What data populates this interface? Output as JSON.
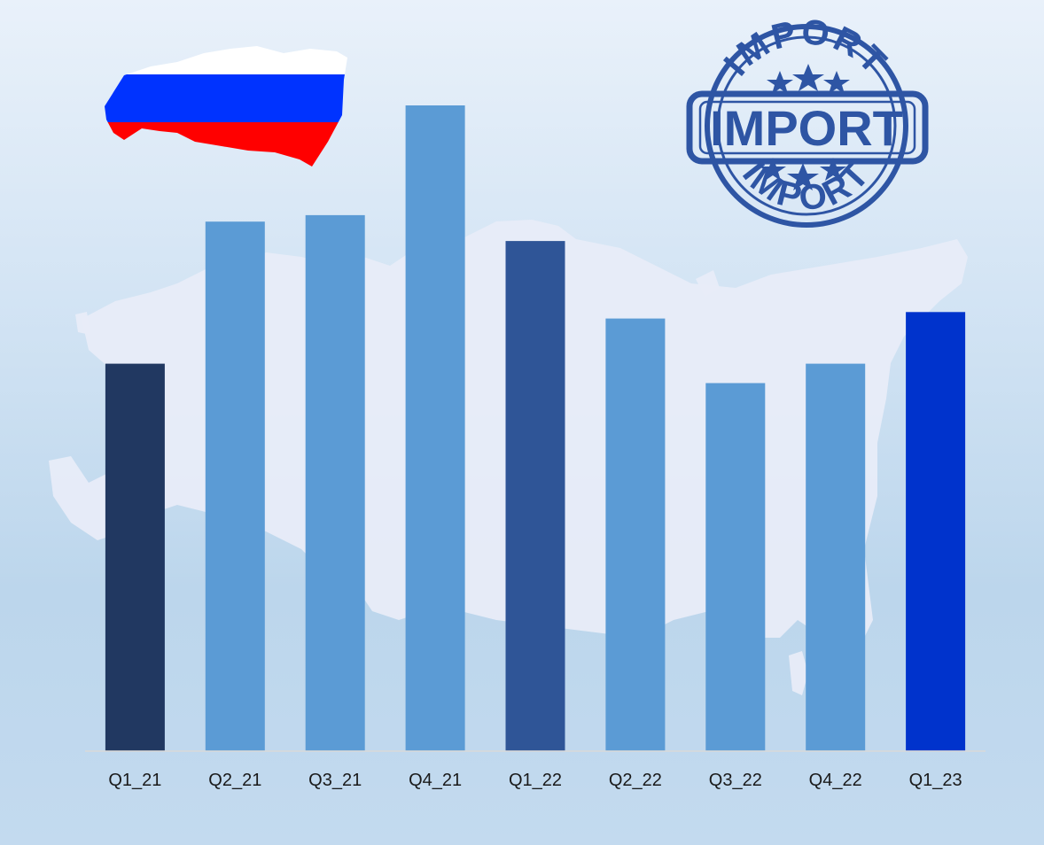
{
  "chart_data": {
    "type": "bar",
    "categories": [
      "Q1_21",
      "Q2_21",
      "Q3_21",
      "Q4_21",
      "Q1_22",
      "Q2_22",
      "Q3_22",
      "Q4_22",
      "Q1_23"
    ],
    "values": [
      60,
      82,
      83,
      100,
      79,
      67,
      57,
      60,
      68
    ],
    "value_scale": "relative bar height (no axis values printed)",
    "bar_colors": [
      "#213861",
      "#5b9bd5",
      "#5b9bd5",
      "#5b9bd5",
      "#2f5597",
      "#5b9bd5",
      "#5b9bd5",
      "#5b9bd5",
      "#0033cc"
    ],
    "ylim": [
      0,
      100
    ],
    "grid": false,
    "legend": "none",
    "title": "",
    "xlabel": "",
    "ylabel": ""
  },
  "decorations": {
    "flag_map": {
      "icon": "russia-flag-map-icon",
      "colors": [
        "#ffffff",
        "#0033ff",
        "#ff0000"
      ]
    },
    "stamp": {
      "icon": "import-stamp-icon",
      "color": "#2e55a4",
      "center_text": "IMPORT",
      "arc_text_top": "IMPORT",
      "arc_text_bottom": "IMPORT"
    },
    "background_map": {
      "icon": "russia-map-silhouette-icon",
      "color": "#e8ecf8"
    }
  }
}
